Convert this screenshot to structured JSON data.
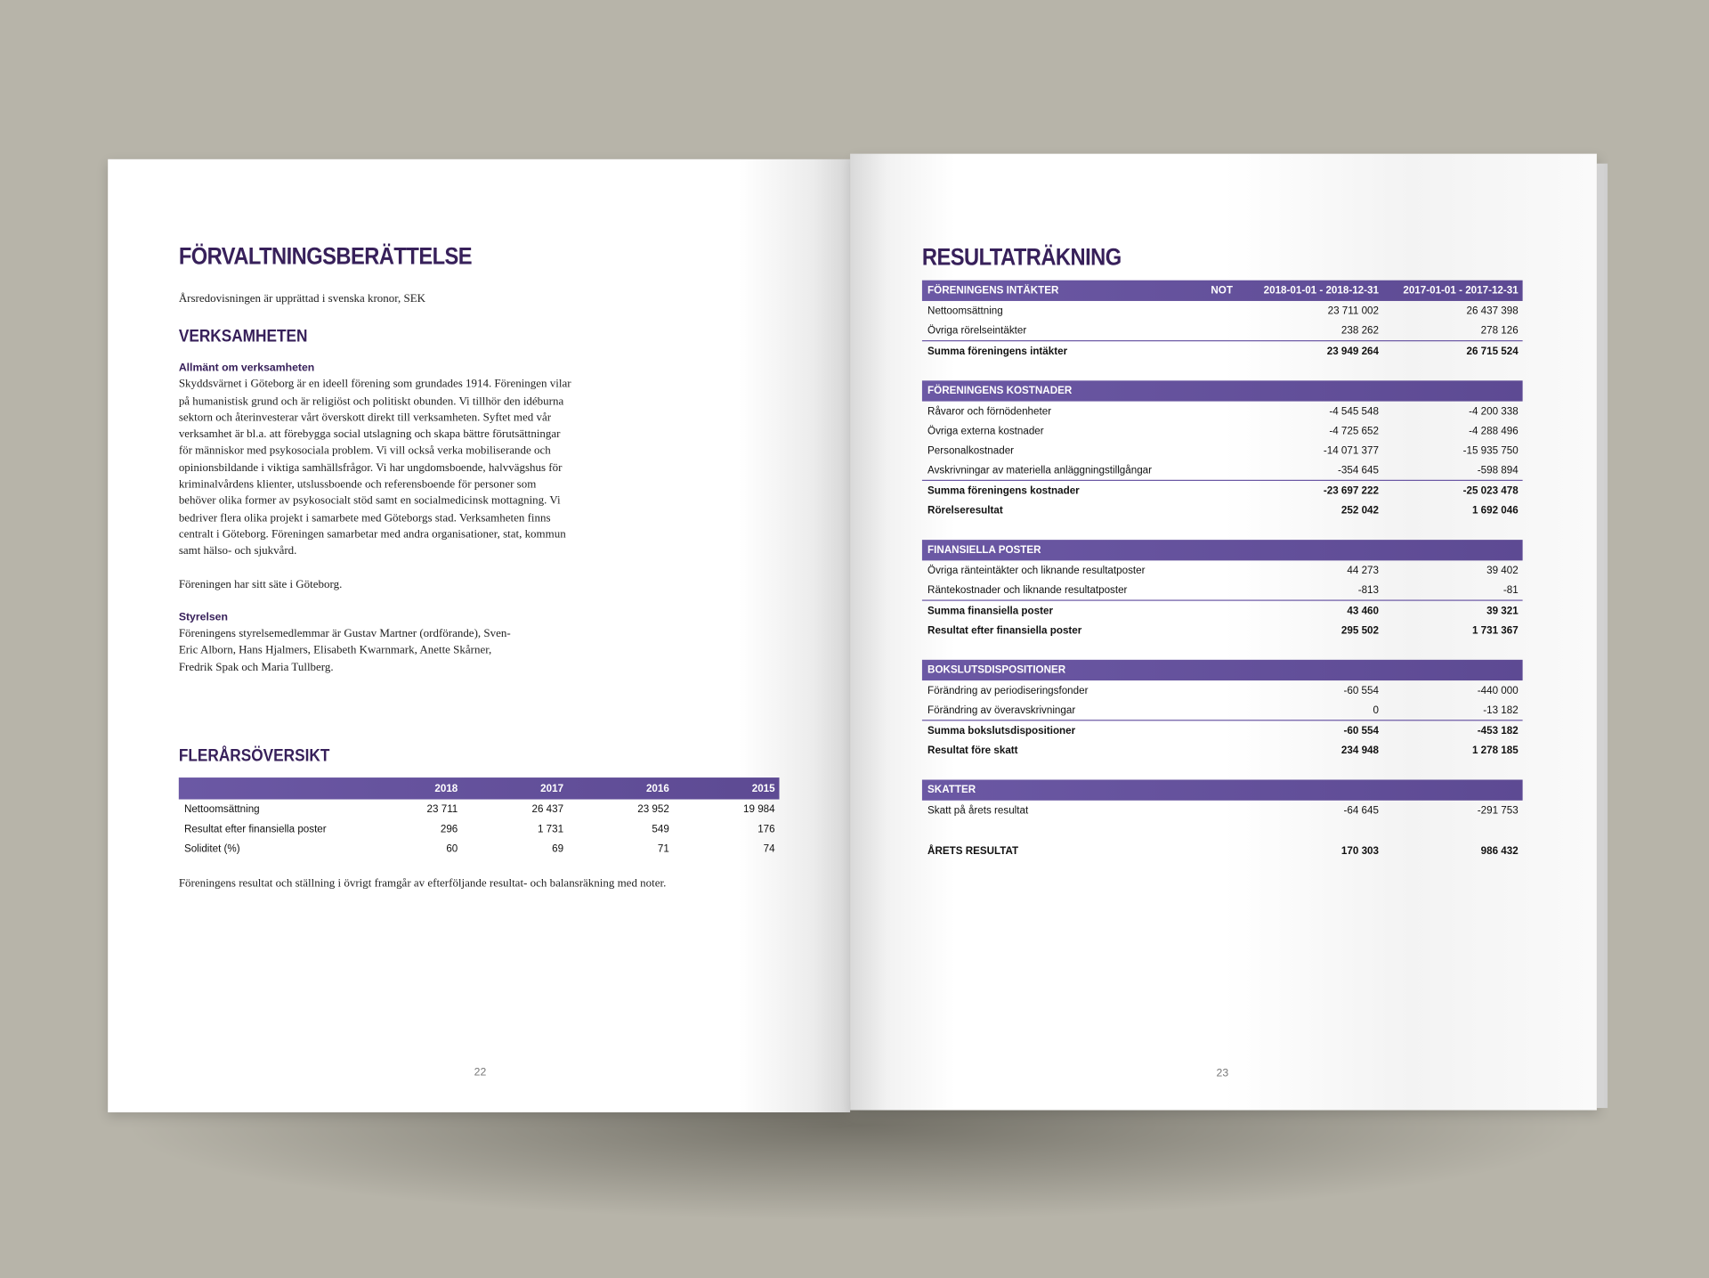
{
  "left_page": {
    "title": "FÖRVALTNINGSBERÄTTELSE",
    "intro": "Årsredovisningen är upprättad i svenska kronor, SEK",
    "section_title": "VERKSAMHETEN",
    "sub1": "Allmänt om verksamheten",
    "para1": "Skyddsvärnet i Göteborg är en ideell förening som grundades 1914. Föreningen vilar på humanistisk grund och är religiöst och politiskt obunden. Vi tillhör den idéburna sektorn och återinvesterar vårt överskott direkt till verksamheten. Syftet med vår verksamhet är bl.a. att förebygga social utslagning och skapa bättre förutsättningar för människor med psykosociala problem. Vi vill också verka mobiliserande och opinionsbildande i viktiga samhällsfrågor. Vi har ungdomsboende, halvvägshus för kriminalvårdens klienter, utslussboende och referensboende för personer som behöver olika former av psykosocialt stöd samt en socialmedicinsk mottagning. Vi bedriver flera olika projekt i samarbete med Göteborgs stad. Verksamheten finns centralt i Göteborg. Föreningen samarbetar med andra organisationer, stat, kommun samt hälso- och sjukvård.",
    "para2": "Föreningen har sitt säte i Göteborg.",
    "sub2": "Styrelsen",
    "para3": "Föreningens styrelsemedlemmar är Gustav Martner (ordförande), Sven-Eric Alborn, Hans Hjalmers, Elisabeth Kwarnmark, Anette Skårner, Fredrik Spak och Maria Tullberg.",
    "overview_title": "FLERÅRSÖVERSIKT",
    "overview": {
      "headers": [
        "",
        "2018",
        "2017",
        "2016",
        "2015"
      ],
      "rows": [
        [
          "Nettoomsättning",
          "23 711",
          "26 437",
          "23 952",
          "19 984"
        ],
        [
          "Resultat efter finansiella poster",
          "296",
          "1 731",
          "549",
          "176"
        ],
        [
          "Soliditet (%)",
          "60",
          "69",
          "71",
          "74"
        ]
      ]
    },
    "footer_text": "Föreningens resultat och ställning i övrigt framgår av efterföljande resultat- och balansräkning med noter.",
    "page_number": "22"
  },
  "right_page": {
    "title": "RESULTATRÄKNING",
    "col_not": "NOT",
    "col_2018": "2018-01-01 - 2018-12-31",
    "col_2017": "2017-01-01 - 2017-12-31",
    "sections": [
      {
        "title": "FÖRENINGENS INTÄKTER",
        "rows": [
          [
            "Nettoomsättning",
            "23 711 002",
            "26 437 398"
          ],
          [
            "Övriga rörelseintäkter",
            "238 262",
            "278 126"
          ]
        ],
        "sums": [
          [
            "Summa föreningens intäkter",
            "23 949 264",
            "26 715 524"
          ]
        ]
      },
      {
        "title": "FÖRENINGENS KOSTNADER",
        "rows": [
          [
            "Råvaror och förnödenheter",
            "-4 545 548",
            "-4 200 338"
          ],
          [
            "Övriga externa kostnader",
            "-4 725 652",
            "-4 288 496"
          ],
          [
            "Personalkostnader",
            "-14 071 377",
            "-15 935 750"
          ],
          [
            "Avskrivningar av materiella anläggningstillgångar",
            "-354 645",
            "-598 894"
          ]
        ],
        "sums": [
          [
            "Summa föreningens kostnader",
            "-23 697 222",
            "-25 023 478"
          ],
          [
            "Rörelseresultat",
            "252 042",
            "1 692 046"
          ]
        ]
      },
      {
        "title": "FINANSIELLA POSTER",
        "rows": [
          [
            "Övriga ränteintäkter och liknande resultatposter",
            "44 273",
            "39 402"
          ],
          [
            "Räntekostnader och liknande resultatposter",
            "-813",
            "-81"
          ]
        ],
        "sums": [
          [
            "Summa finansiella poster",
            "43 460",
            "39 321"
          ],
          [
            "Resultat efter finansiella poster",
            "295 502",
            "1 731 367"
          ]
        ]
      },
      {
        "title": "BOKSLUTSDISPOSITIONER",
        "rows": [
          [
            "Förändring av periodiseringsfonder",
            "-60 554",
            "-440 000"
          ],
          [
            "Förändring av överavskrivningar",
            "0",
            "-13 182"
          ]
        ],
        "sums": [
          [
            "Summa bokslutsdispositioner",
            "-60 554",
            "-453 182"
          ],
          [
            "Resultat före skatt",
            "234 948",
            "1 278 185"
          ]
        ]
      },
      {
        "title": "SKATTER",
        "rows": [
          [
            "Skatt på årets resultat",
            "-64 645",
            "-291 753"
          ]
        ],
        "sums": []
      }
    ],
    "final": [
      "ÅRETS RESULTAT",
      "170 303",
      "986 432"
    ],
    "page_number": "23"
  },
  "colors": {
    "accent": "#6b58a4",
    "heading": "#37205a",
    "background": "#b7b4a9"
  }
}
